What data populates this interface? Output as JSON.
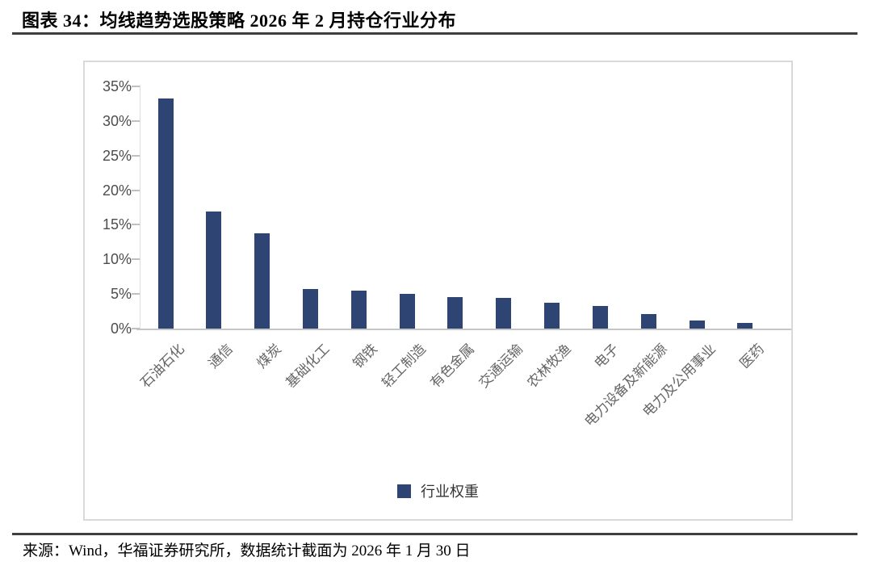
{
  "header": {
    "title": "图表 34：均线趋势选股策略 2026 年 2 月持仓行业分布"
  },
  "chart_data": {
    "type": "bar",
    "title": "均线趋势选股策略 2026 年 2 月持仓行业分布",
    "categories": [
      "石油石化",
      "通信",
      "煤炭",
      "基础化工",
      "钢铁",
      "轻工制造",
      "有色金属",
      "交通运输",
      "农林牧渔",
      "电子",
      "电力设备及新能源",
      "电力及公用事业",
      "医药"
    ],
    "values": [
      33.3,
      16.9,
      13.8,
      5.7,
      5.5,
      5.0,
      4.5,
      4.4,
      3.7,
      3.3,
      2.1,
      1.2,
      0.8
    ],
    "series_name": "行业权重",
    "xlabel": "",
    "ylabel": "",
    "ylim": [
      0,
      35
    ],
    "ytick_step": 5,
    "ytick_labels": [
      "0%",
      "5%",
      "10%",
      "15%",
      "20%",
      "25%",
      "30%",
      "35%"
    ],
    "grid": false,
    "legend_position": "bottom",
    "bar_color": "#2e4574"
  },
  "legend": {
    "label": "行业权重",
    "swatch_color": "#2e4574"
  },
  "footer": {
    "source": "来源：Wind，华福证券研究所，数据统计截面为 2026 年 1 月 30 日"
  }
}
